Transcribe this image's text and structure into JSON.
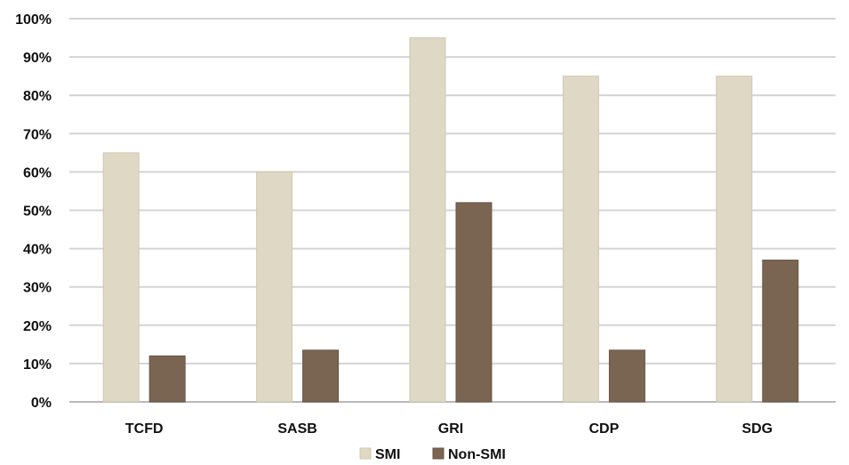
{
  "chart_data": {
    "type": "bar",
    "categories": [
      "TCFD",
      "SASB",
      "GRI",
      "CDP",
      "SDG"
    ],
    "series": [
      {
        "name": "SMI",
        "values": [
          65,
          60,
          95,
          85,
          85
        ],
        "color": "#ded8c4"
      },
      {
        "name": "Non-SMI",
        "values": [
          12,
          13.5,
          52,
          13.5,
          37
        ],
        "color": "#7a6552"
      }
    ],
    "ylim": [
      0,
      100
    ],
    "yticks": [
      "0%",
      "10%",
      "20%",
      "30%",
      "40%",
      "50%",
      "60%",
      "70%",
      "80%",
      "90%",
      "100%"
    ],
    "grid": true,
    "legend_position": "bottom",
    "title": "",
    "xlabel": "",
    "ylabel": ""
  }
}
